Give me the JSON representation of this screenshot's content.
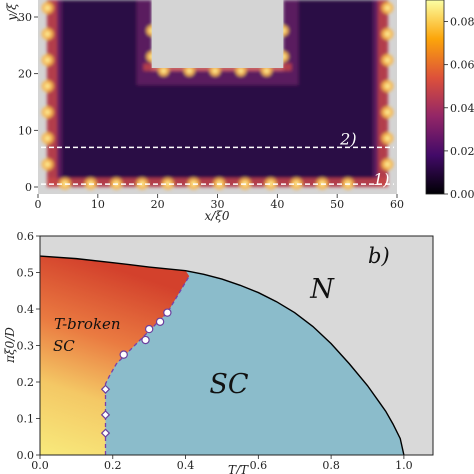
{
  "chart_data": [
    {
      "type": "heatmap",
      "xlabel": "x/ξ0",
      "ylabel": "y/ξ",
      "xlim": [
        0,
        60
      ],
      "ylim": [
        0,
        33
      ],
      "x_ticks": [
        "0",
        "10",
        "20",
        "30",
        "40",
        "50",
        "60"
      ],
      "y_ticks": [
        "0",
        "10",
        "20",
        "30"
      ],
      "colorbar": {
        "ticks": [
          "0.00",
          "0.02",
          "0.04",
          "0.06",
          "0.08"
        ],
        "range": [
          0,
          0.09
        ],
        "colormap": "inferno"
      },
      "cut_lines": [
        {
          "label": "1)",
          "y": 0.5
        },
        {
          "label": "2)",
          "y": 7
        }
      ],
      "empty_region": {
        "x": [
          19,
          41
        ],
        "y": [
          21,
          33
        ]
      },
      "colors": {
        "background": "#d4d4d4",
        "low": "#1b0c41",
        "high": "#fcffa4"
      }
    },
    {
      "type": "area",
      "panel_label": "b)",
      "xlabel": "T/T",
      "ylabel": "πξ0/D",
      "xlim": [
        0,
        1.08
      ],
      "ylim": [
        0,
        0.6
      ],
      "x_ticks": [
        "0.0",
        "0.2",
        "0.4",
        "0.6",
        "0.8",
        "1.0"
      ],
      "y_ticks": [
        "0.0",
        "0.1",
        "0.2",
        "0.3",
        "0.4",
        "0.5",
        "0.6"
      ],
      "phase_labels": [
        "N",
        "SC",
        "T-broken",
        "SC"
      ],
      "normal_boundary": {
        "x": [
          0.0,
          0.1,
          0.2,
          0.3,
          0.4,
          0.45,
          0.5,
          0.55,
          0.6,
          0.65,
          0.7,
          0.75,
          0.8,
          0.85,
          0.9,
          0.95,
          0.97,
          0.99,
          1.0
        ],
        "y": [
          0.545,
          0.538,
          0.527,
          0.515,
          0.505,
          0.495,
          0.482,
          0.465,
          0.445,
          0.42,
          0.39,
          0.352,
          0.305,
          0.25,
          0.19,
          0.12,
          0.085,
          0.045,
          0.0
        ]
      },
      "tbroken_boundary": {
        "x": [
          0.18,
          0.18,
          0.18,
          0.18,
          0.19,
          0.21,
          0.25,
          0.29,
          0.32,
          0.35,
          0.38,
          0.41
        ],
        "y": [
          0.0,
          0.1,
          0.17,
          0.195,
          0.215,
          0.25,
          0.29,
          0.33,
          0.36,
          0.39,
          0.44,
          0.49
        ]
      },
      "circle_markers": {
        "x": [
          0.23,
          0.29,
          0.3,
          0.33,
          0.35
        ],
        "y": [
          0.275,
          0.315,
          0.345,
          0.365,
          0.39
        ]
      },
      "diamond_markers": {
        "x": [
          0.18,
          0.18,
          0.18
        ],
        "y": [
          0.06,
          0.11,
          0.18
        ]
      },
      "colors": {
        "normal": "#d9d9d9",
        "sc": "#8bbccb",
        "tbroken_top": "#d2432c",
        "tbroken_bottom": "#f6e87a",
        "boundary": "#000000",
        "tbroken_line": "#7a3fa8"
      }
    }
  ]
}
